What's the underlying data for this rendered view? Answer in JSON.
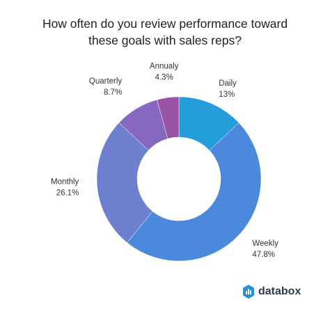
{
  "chart_data": {
    "type": "pie",
    "title_lines": [
      "How often do you review performance toward",
      "these goals with sales reps?"
    ],
    "slices": [
      {
        "label": "Daily",
        "value_label": "13%",
        "value": 13,
        "color": "#249ddb"
      },
      {
        "label": "Weekly",
        "value_label": "47.8%",
        "value": 47.8,
        "color": "#4a89dc"
      },
      {
        "label": "Monthly",
        "value_label": "26.1%",
        "value": 26.1,
        "color": "#6e7fcf"
      },
      {
        "label": "Quarterly",
        "value_label": "8.7%",
        "value": 8.7,
        "color": "#8767c0"
      },
      {
        "label": "Annualy",
        "value_label": "4.3%",
        "value": 4.3,
        "color": "#9a54a6"
      }
    ]
  },
  "brand": {
    "name": "databox",
    "logo_icon": "databox-logo-icon"
  }
}
